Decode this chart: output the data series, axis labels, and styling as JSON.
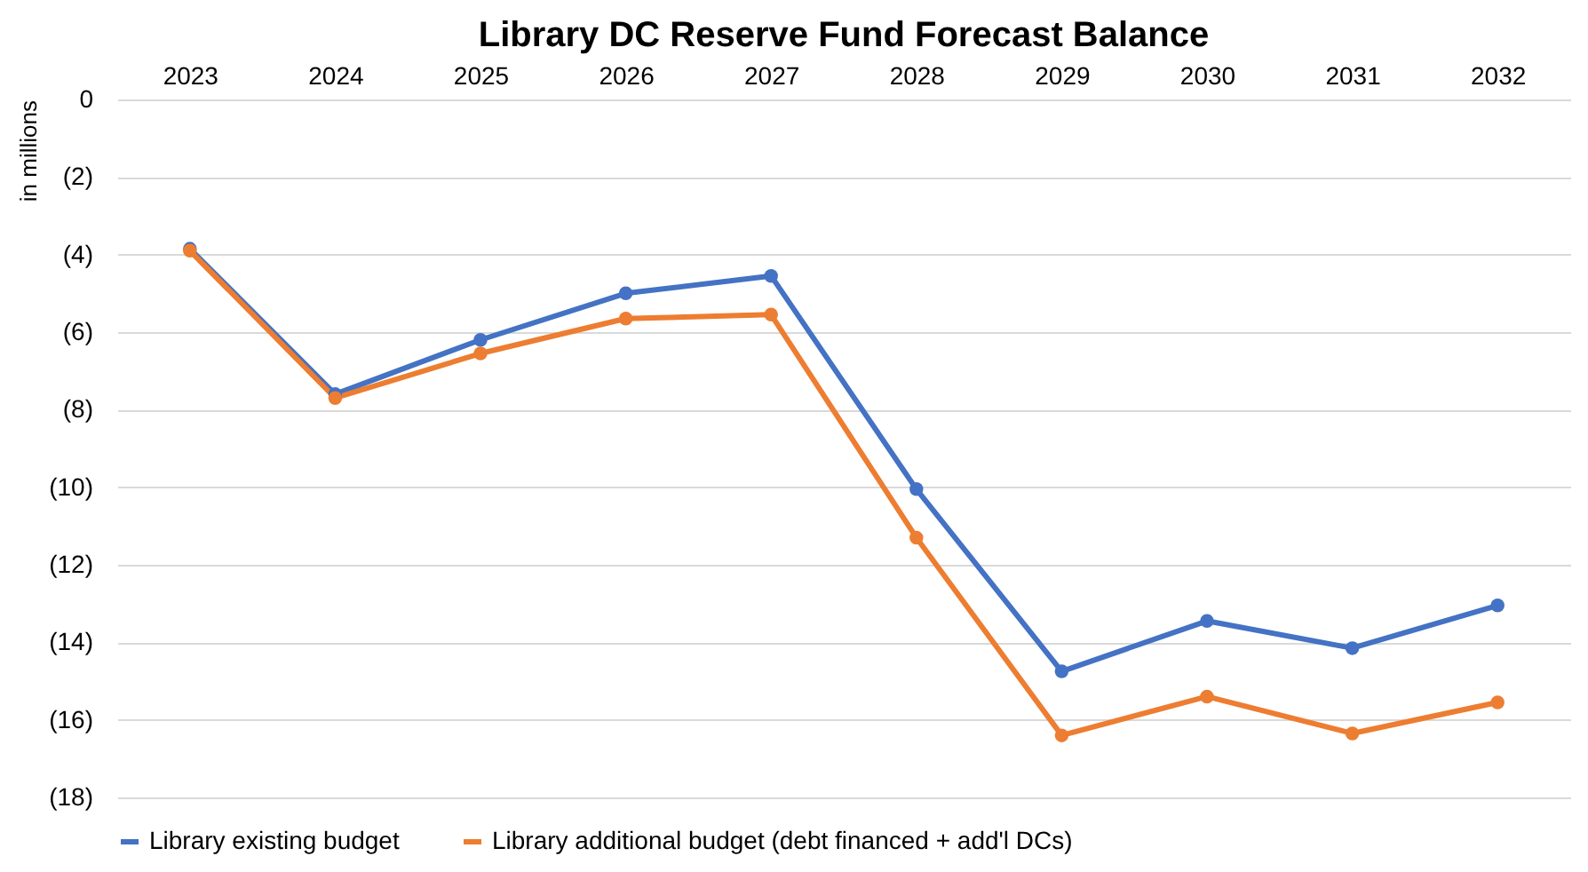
{
  "chart_data": {
    "type": "line",
    "title": "Library DC Reserve Fund Forecast Balance",
    "ylabel": "in millions",
    "categories": [
      "2023",
      "2024",
      "2025",
      "2026",
      "2027",
      "2028",
      "2029",
      "2030",
      "2031",
      "2032"
    ],
    "series": [
      {
        "name": "Library existing budget",
        "color": "#4472c4",
        "values": [
          -3.85,
          -7.6,
          -6.2,
          -5.0,
          -4.55,
          -10.05,
          -14.75,
          -13.45,
          -14.15,
          -13.05
        ]
      },
      {
        "name": "Library additional budget (debt financed + add'l DCs)",
        "color": "#ed7d31",
        "values": [
          -3.9,
          -7.7,
          -6.55,
          -5.65,
          -5.55,
          -11.3,
          -16.4,
          -15.4,
          -16.35,
          -15.55
        ]
      }
    ],
    "ylim": [
      -18,
      0
    ],
    "yticks": [
      0,
      {
        "value": -2,
        "label": "(2)"
      },
      {
        "value": -4,
        "label": "(4)"
      },
      {
        "value": -6,
        "label": "(6)"
      },
      {
        "value": -8,
        "label": "(8)"
      },
      {
        "value": -10,
        "label": "(10)"
      },
      {
        "value": -12,
        "label": "(12)"
      },
      {
        "value": -14,
        "label": "(14)"
      },
      {
        "value": -16,
        "label": "(16)"
      },
      {
        "value": -18,
        "label": "(18)"
      }
    ],
    "grid": "y",
    "legend": "bottom",
    "marker": "circle",
    "line_style": "solid"
  }
}
